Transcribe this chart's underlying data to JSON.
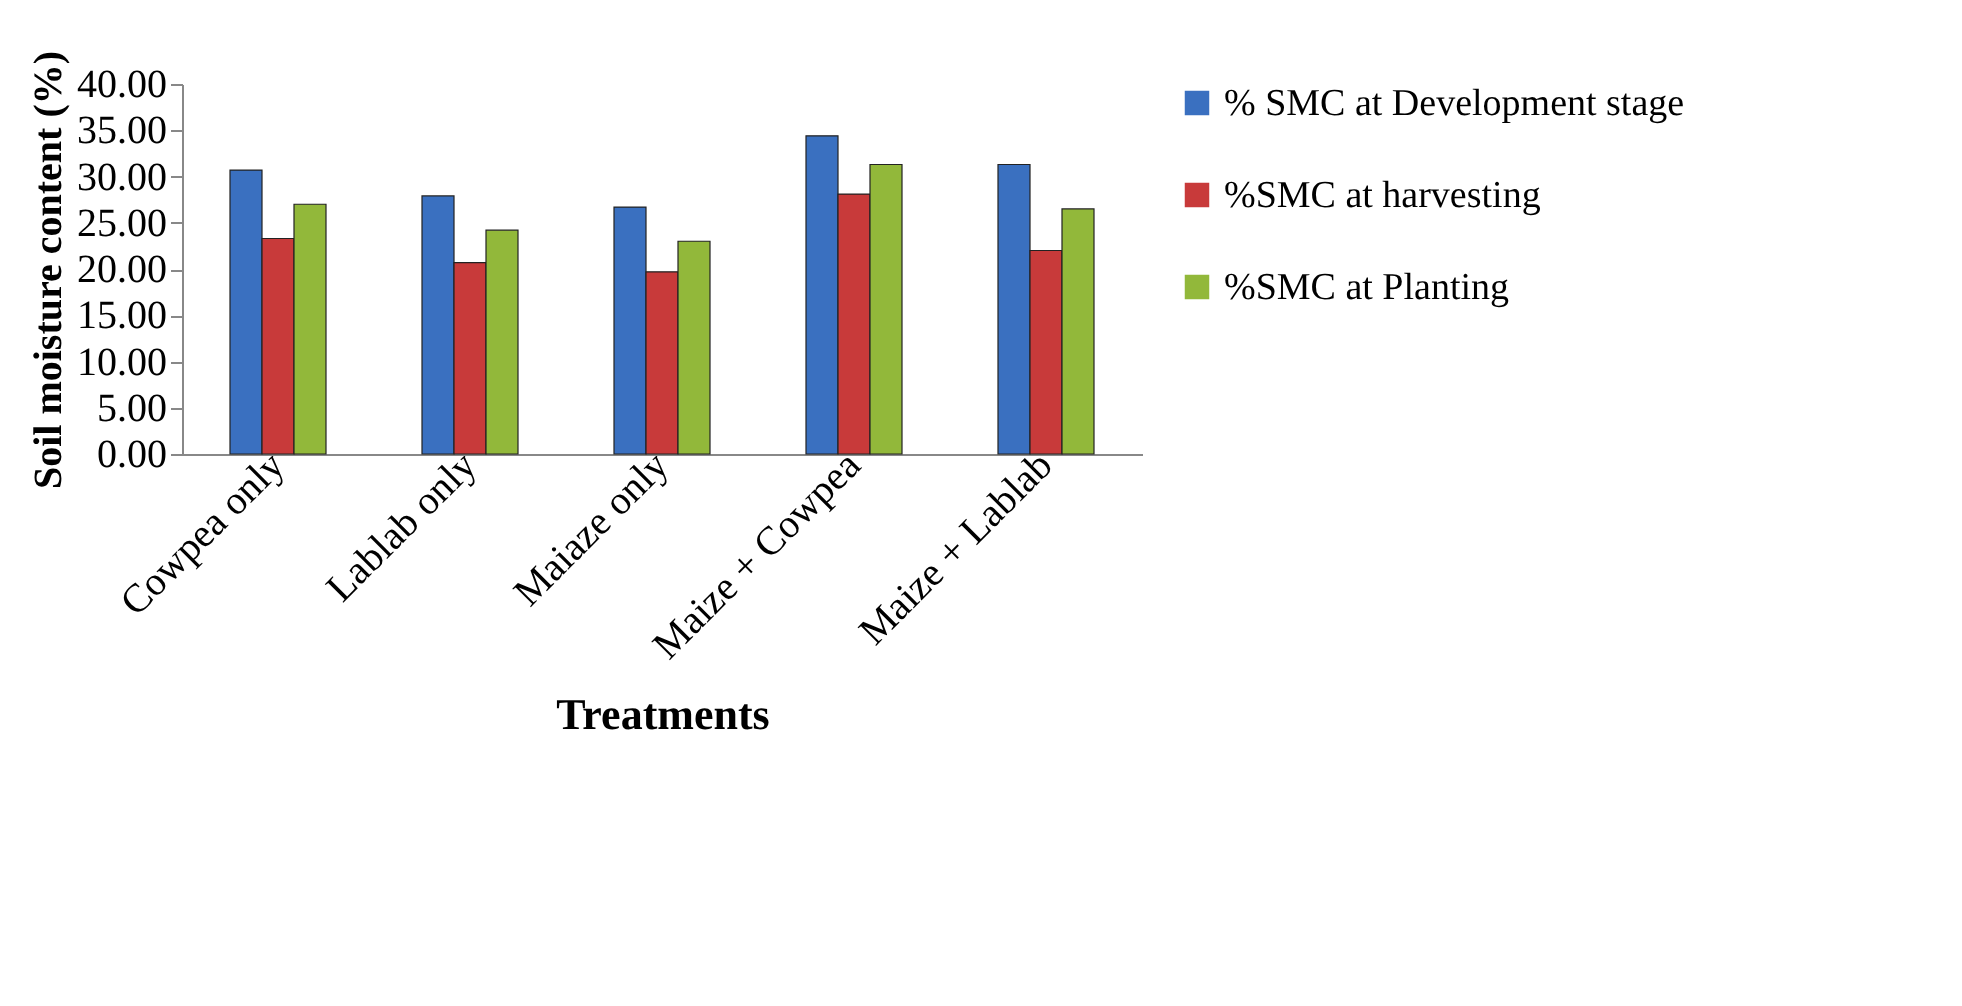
{
  "chart_data": {
    "type": "bar",
    "xlabel": "Treatments",
    "ylabel": "Soil moisture content (%)",
    "categories": [
      "Cowpea only",
      "Lablab only",
      "Maiaze only",
      "Maize + Cowpea",
      "Maize + Lablab"
    ],
    "series": [
      {
        "name": "% SMC at Development stage",
        "color": "#3a70c0",
        "values": [
          30.7,
          27.9,
          26.7,
          34.4,
          31.3
        ]
      },
      {
        "name": "%SMC at harvesting",
        "color": "#c83a3a",
        "values": [
          23.3,
          20.7,
          19.7,
          28.1,
          22.0
        ]
      },
      {
        "name": "%SMC at Planting",
        "color": "#92b83a",
        "values": [
          27.0,
          24.2,
          23.0,
          31.3,
          26.5
        ]
      }
    ],
    "ylim": [
      0,
      40
    ],
    "yticks": [
      {
        "value": 0,
        "label": "0.00"
      },
      {
        "value": 5,
        "label": "5.00"
      },
      {
        "value": 10,
        "label": "10.00"
      },
      {
        "value": 15,
        "label": "15.00"
      },
      {
        "value": 20,
        "label": "20.00"
      },
      {
        "value": 25,
        "label": "25.00"
      },
      {
        "value": 30,
        "label": "30.00"
      },
      {
        "value": 35,
        "label": "35.00"
      },
      {
        "value": 40,
        "label": "40.00"
      }
    ],
    "grid": false,
    "legend": "right"
  }
}
